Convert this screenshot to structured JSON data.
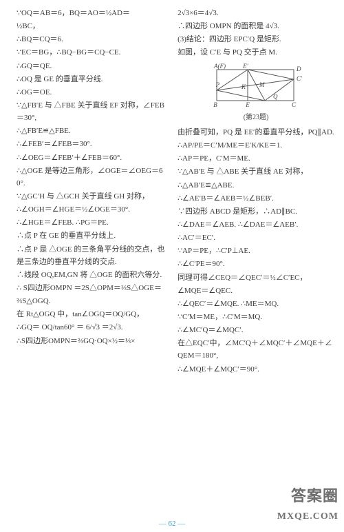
{
  "left_lines": [
    "∵OQ＝AB＝6，BQ＝AO＝½AD＝",
    "½BC，",
    "∴BQ＝CQ＝6.",
    "∵EC＝BG，∴BQ−BG＝CQ−CE.",
    "∴GQ＝QE.",
    "∴OQ 是 GE 的垂直平分线.",
    "∴OG＝OE.",
    "∵△FB′E 与 △FBE 关于直线 EF 对称，∠FEB＝30°,",
    "∴△FB′E≌△FBE.",
    "∴∠FEB′＝∠FEB＝30°.",
    "∴∠OEG＝∠FEB′＋∠FEB＝60°.",
    "∴△OGE 是等边三角形，∠OGE＝∠OEG＝60°.",
    "∵△GC′H 与 △GCH 关于直线 GH 对称，",
    "∴∠OGH＝∠HGE＝½∠OGE＝30°.",
    "∴∠HGE＝∠FEB. ∴PG＝PE.",
    "∴点 P 在 GE 的垂直平分线上.",
    "∴点 P 是 △OGE 的三条角平分线的交点，也是三条边的垂直平分线的交点.",
    "∴线段 OQ,EM,GN 将 △OGE 的面积六等分.",
    "∴ S四边形OMPN ＝2S△OPM＝⅓S△OGE＝",
    "⅔S△OGQ.",
    "在 Rt△OGQ 中，tan∠OGQ＝OQ/GQ，",
    "∴GQ＝ OQ/tan60° ＝ 6/√3 ＝2√3.",
    "∴S四边形OMPN＝⅔GQ·OQ×½＝⅓×"
  ],
  "right_lines_before": [
    "2√3×6＝4√3.",
    "∴四边形 OMPN 的面积是 4√3.",
    "(3)结论：四边形 EPC′Q 是矩形.",
    "如图，设 C′E 与 PQ 交于点 M."
  ],
  "diagram": {
    "caption": "(第23题)",
    "width": 150,
    "height": 70,
    "stroke": "#555555",
    "bg": "#ffffff",
    "labels": {
      "AF": "A(F)",
      "E": "E′",
      "D": "D",
      "P": "P",
      "E2": "E",
      "M": "M",
      "Q": "Q",
      "B": "B",
      "C": "C",
      "K": "K",
      "C2": "C′"
    }
  },
  "right_lines_after": [
    "由折叠可知，PQ 是 EE′的垂直平分线，PQ∥AD.",
    "∴AP/PE＝C′M/ME＝E′K/KE＝1.",
    "∴AP＝PE，C′M＝ME.",
    "∵△AB′E 与 △ABE 关于直线 AE 对称，",
    "∴△AB′E≌△ABE.",
    "∴∠AE′B＝∠AEB＝½∠BEB′.",
    "∵四边形 ABCD 是矩形，∴AD∥BC.",
    "∴∠DAE＝∠AEB. ∴∠DAE＝∠AEB′.",
    "∴AC′＝EC′.",
    "∵AP＝PE，∴C′P⊥AE.",
    "∴∠C′PE＝90°.",
    "同理可得∠CEQ＝∠QEC′＝½∠C′EC，",
    "∠MQE＝∠QEC.",
    "∴∠QEC′＝∠MQE. ∴ME＝MQ.",
    "∵C′M＝ME，∴C′M＝MQ.",
    "∴∠MC′Q＝∠MQC′.",
    "在△EQC′中，∠MC′Q＋∠MQC′＋∠MQE＋∠QEM＝180°,",
    "∴∠MQE＋∠MQC′＝90°."
  ],
  "page_number": "— 62 —",
  "watermark1": "答案圈",
  "watermark2": "MXQE.COM"
}
